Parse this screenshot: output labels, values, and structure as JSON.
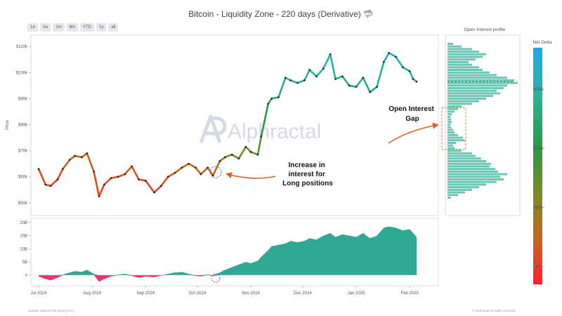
{
  "header": {
    "title": "Bitcoin - Liquidity Zone - 220 days (Derivative)",
    "title_icon": "shark-icon"
  },
  "range_buttons": [
    "1d",
    "1w",
    "1m",
    "6m",
    "YTD",
    "1y",
    "all"
  ],
  "watermark": "Alphractal",
  "footer": {
    "left": "Update: 2025-02-05 05:00 (UTC)",
    "right": "© Alphractal All rights reserved"
  },
  "colors": {
    "oi_positive": "#2fa894",
    "oi_negative": "#f0306a",
    "profile_bar": "#6cc7b6",
    "annotation": "#d2642a",
    "gap_box": "#e07b35",
    "colorbar": [
      "#ff1f2e",
      "#c8641d",
      "#7a8b22",
      "#2a9a44",
      "#2bb39c",
      "#1fa8e8"
    ]
  },
  "chart_data": [
    {
      "type": "line",
      "name": "price_panel",
      "ylabel": "Price",
      "x_dates": [
        "2024-07-01",
        "2024-07-05",
        "2024-07-08",
        "2024-07-12",
        "2024-07-15",
        "2024-07-19",
        "2024-07-22",
        "2024-07-26",
        "2024-07-29",
        "2024-08-02",
        "2024-08-05",
        "2024-08-08",
        "2024-08-12",
        "2024-08-16",
        "2024-08-20",
        "2024-08-24",
        "2024-08-28",
        "2024-09-01",
        "2024-09-06",
        "2024-09-10",
        "2024-09-14",
        "2024-09-18",
        "2024-09-22",
        "2024-09-26",
        "2024-09-30",
        "2024-10-03",
        "2024-10-07",
        "2024-10-10",
        "2024-10-14",
        "2024-10-17",
        "2024-10-21",
        "2024-10-25",
        "2024-10-29",
        "2024-11-01",
        "2024-11-05",
        "2024-11-07",
        "2024-11-11",
        "2024-11-13",
        "2024-11-17",
        "2024-11-21",
        "2024-11-24",
        "2024-11-28",
        "2024-12-02",
        "2024-12-05",
        "2024-12-09",
        "2024-12-13",
        "2024-12-17",
        "2024-12-20",
        "2024-12-24",
        "2024-12-28",
        "2025-01-01",
        "2025-01-05",
        "2025-01-09",
        "2025-01-13",
        "2025-01-17",
        "2025-01-20",
        "2025-01-24",
        "2025-01-28",
        "2025-02-01",
        "2025-02-03",
        "2025-02-05"
      ],
      "price": [
        63000,
        57000,
        56500,
        59000,
        63000,
        66500,
        68000,
        67500,
        69000,
        62000,
        52500,
        57000,
        59500,
        60000,
        61000,
        64000,
        59000,
        58500,
        54000,
        56500,
        60000,
        61500,
        63500,
        65000,
        63500,
        61000,
        63500,
        60500,
        66000,
        67500,
        68500,
        67000,
        71500,
        69500,
        68500,
        75500,
        88000,
        90000,
        90500,
        98000,
        97000,
        96000,
        97000,
        101000,
        98500,
        101500,
        107000,
        97500,
        98500,
        95000,
        94500,
        98000,
        92500,
        94500,
        104000,
        107500,
        106000,
        102000,
        100500,
        97500,
        96500
      ],
      "net_delta_b": [
        1.0,
        0.5,
        0.5,
        0.8,
        1.5,
        2.8,
        3.2,
        3.0,
        3.3,
        1.8,
        0.0,
        0.8,
        1.2,
        1.5,
        1.6,
        2.2,
        1.2,
        1.0,
        0.3,
        0.6,
        1.4,
        1.8,
        2.5,
        2.8,
        2.5,
        1.6,
        2.6,
        1.8,
        3.6,
        5.2,
        6.0,
        6.2,
        7.5,
        7.0,
        6.8,
        8.5,
        11.5,
        12.0,
        12.5,
        14.5,
        14.2,
        13.8,
        14.0,
        15.0,
        14.0,
        15.0,
        16.5,
        13.5,
        14.0,
        13.0,
        12.8,
        14.0,
        11.8,
        12.5,
        15.5,
        17.0,
        16.8,
        15.8,
        15.2,
        14.2,
        14.0
      ],
      "yticks": [
        "$50k",
        "$60k",
        "$70k",
        "$80k",
        "$90k",
        "$100k",
        "$110k"
      ],
      "ylim": [
        47000,
        113000
      ],
      "grid": false
    },
    {
      "type": "area",
      "name": "open_interest_delta_panel",
      "x_dates": [
        "2024-07-01",
        "2024-07-05",
        "2024-07-08",
        "2024-07-12",
        "2024-07-15",
        "2024-07-19",
        "2024-07-22",
        "2024-07-26",
        "2024-07-29",
        "2024-08-02",
        "2024-08-05",
        "2024-08-08",
        "2024-08-12",
        "2024-08-16",
        "2024-08-20",
        "2024-08-24",
        "2024-08-28",
        "2024-09-01",
        "2024-09-06",
        "2024-09-10",
        "2024-09-14",
        "2024-09-18",
        "2024-09-22",
        "2024-09-26",
        "2024-09-30",
        "2024-10-03",
        "2024-10-07",
        "2024-10-10",
        "2024-10-14",
        "2024-10-17",
        "2024-10-21",
        "2024-10-25",
        "2024-10-29",
        "2024-11-01",
        "2024-11-05",
        "2024-11-07",
        "2024-11-11",
        "2024-11-13",
        "2024-11-17",
        "2024-11-21",
        "2024-11-24",
        "2024-11-28",
        "2024-12-02",
        "2024-12-05",
        "2024-12-09",
        "2024-12-13",
        "2024-12-17",
        "2024-12-20",
        "2024-12-24",
        "2024-12-28",
        "2025-01-01",
        "2025-01-05",
        "2025-01-09",
        "2025-01-13",
        "2025-01-17",
        "2025-01-20",
        "2025-01-24",
        "2025-01-28",
        "2025-02-01",
        "2025-02-03",
        "2025-02-05"
      ],
      "values_b": [
        -0.5,
        -1.5,
        -2.0,
        -1.0,
        0.2,
        1.0,
        1.5,
        1.2,
        2.0,
        0.5,
        -2.5,
        -1.5,
        -0.5,
        0.2,
        0.5,
        -0.3,
        -1.0,
        -0.5,
        -0.8,
        -0.2,
        0.5,
        1.0,
        1.2,
        0.5,
        -0.3,
        -0.5,
        0.3,
        -0.4,
        1.0,
        2.0,
        3.0,
        4.0,
        5.0,
        4.5,
        5.5,
        7.0,
        9.5,
        11.0,
        11.5,
        12.0,
        13.0,
        12.5,
        13.0,
        14.0,
        13.5,
        15.0,
        16.0,
        14.5,
        15.5,
        15.0,
        14.5,
        16.0,
        14.0,
        15.0,
        18.0,
        18.5,
        18.0,
        17.0,
        17.5,
        16.0,
        14.5
      ],
      "yticks": [
        "0",
        "5B",
        "10B",
        "15B",
        "20B"
      ],
      "ylim": [
        -3,
        20.5
      ]
    },
    {
      "type": "bar",
      "name": "open_interest_profile",
      "title": "Open Interest profile",
      "price_levels": [
        52000,
        53000,
        54000,
        55000,
        56000,
        57000,
        58000,
        59000,
        60000,
        61000,
        62000,
        63000,
        64000,
        65000,
        66000,
        67000,
        68000,
        69000,
        70000,
        71000,
        72000,
        73000,
        74000,
        75000,
        76000,
        77000,
        78000,
        79000,
        80000,
        81000,
        82000,
        83000,
        84000,
        85000,
        86000,
        87000,
        88000,
        89000,
        90000,
        91000,
        92000,
        93000,
        94000,
        95000,
        96000,
        97000,
        98000,
        99000,
        100000,
        101000,
        102000,
        103000,
        104000,
        105000,
        106000,
        107000,
        108000,
        109000,
        110000,
        111000
      ],
      "values": [
        0.05,
        0.15,
        0.25,
        0.35,
        0.45,
        0.55,
        0.7,
        0.8,
        0.75,
        0.85,
        0.72,
        0.68,
        0.6,
        0.62,
        0.55,
        0.48,
        0.4,
        0.35,
        0.2,
        0.1,
        0.08,
        0.12,
        0.25,
        0.22,
        0.15,
        0.1,
        0.08,
        0.05,
        0.04,
        0.06,
        0.05,
        0.04,
        0.06,
        0.1,
        0.15,
        0.2,
        0.35,
        0.45,
        0.55,
        0.65,
        0.75,
        0.7,
        0.8,
        0.85,
        1.0,
        0.95,
        0.85,
        0.7,
        0.6,
        0.5,
        0.45,
        0.35,
        0.3,
        0.4,
        0.5,
        0.55,
        0.45,
        0.35,
        0.2,
        0.08
      ],
      "gap_label": "Open Interest Gap",
      "gap_range": [
        70500,
        86500
      ]
    }
  ],
  "x_axis": {
    "ticks": [
      {
        "date": "2024-07-01",
        "label": "Jul 2024"
      },
      {
        "date": "2024-08-01",
        "label": "Aug 2024"
      },
      {
        "date": "2024-09-01",
        "label": "Sep 2024"
      },
      {
        "date": "2024-10-01",
        "label": "Oct 2024"
      },
      {
        "date": "2024-11-01",
        "label": "Nov 2024"
      },
      {
        "date": "2024-12-01",
        "label": "Dec 2024"
      },
      {
        "date": "2025-01-01",
        "label": "Jan 2025"
      },
      {
        "date": "2025-02-01",
        "label": "Feb 2025"
      }
    ]
  },
  "colorbar": {
    "title": "Net Delta",
    "ticks": [
      "$0",
      "$5B",
      "$10B",
      "$15B"
    ],
    "range_b": [
      -1.5,
      18.5
    ]
  },
  "annotations": {
    "long_interest": "Increase in interest for Long positions",
    "oi_gap": "Open Interest Gap"
  }
}
